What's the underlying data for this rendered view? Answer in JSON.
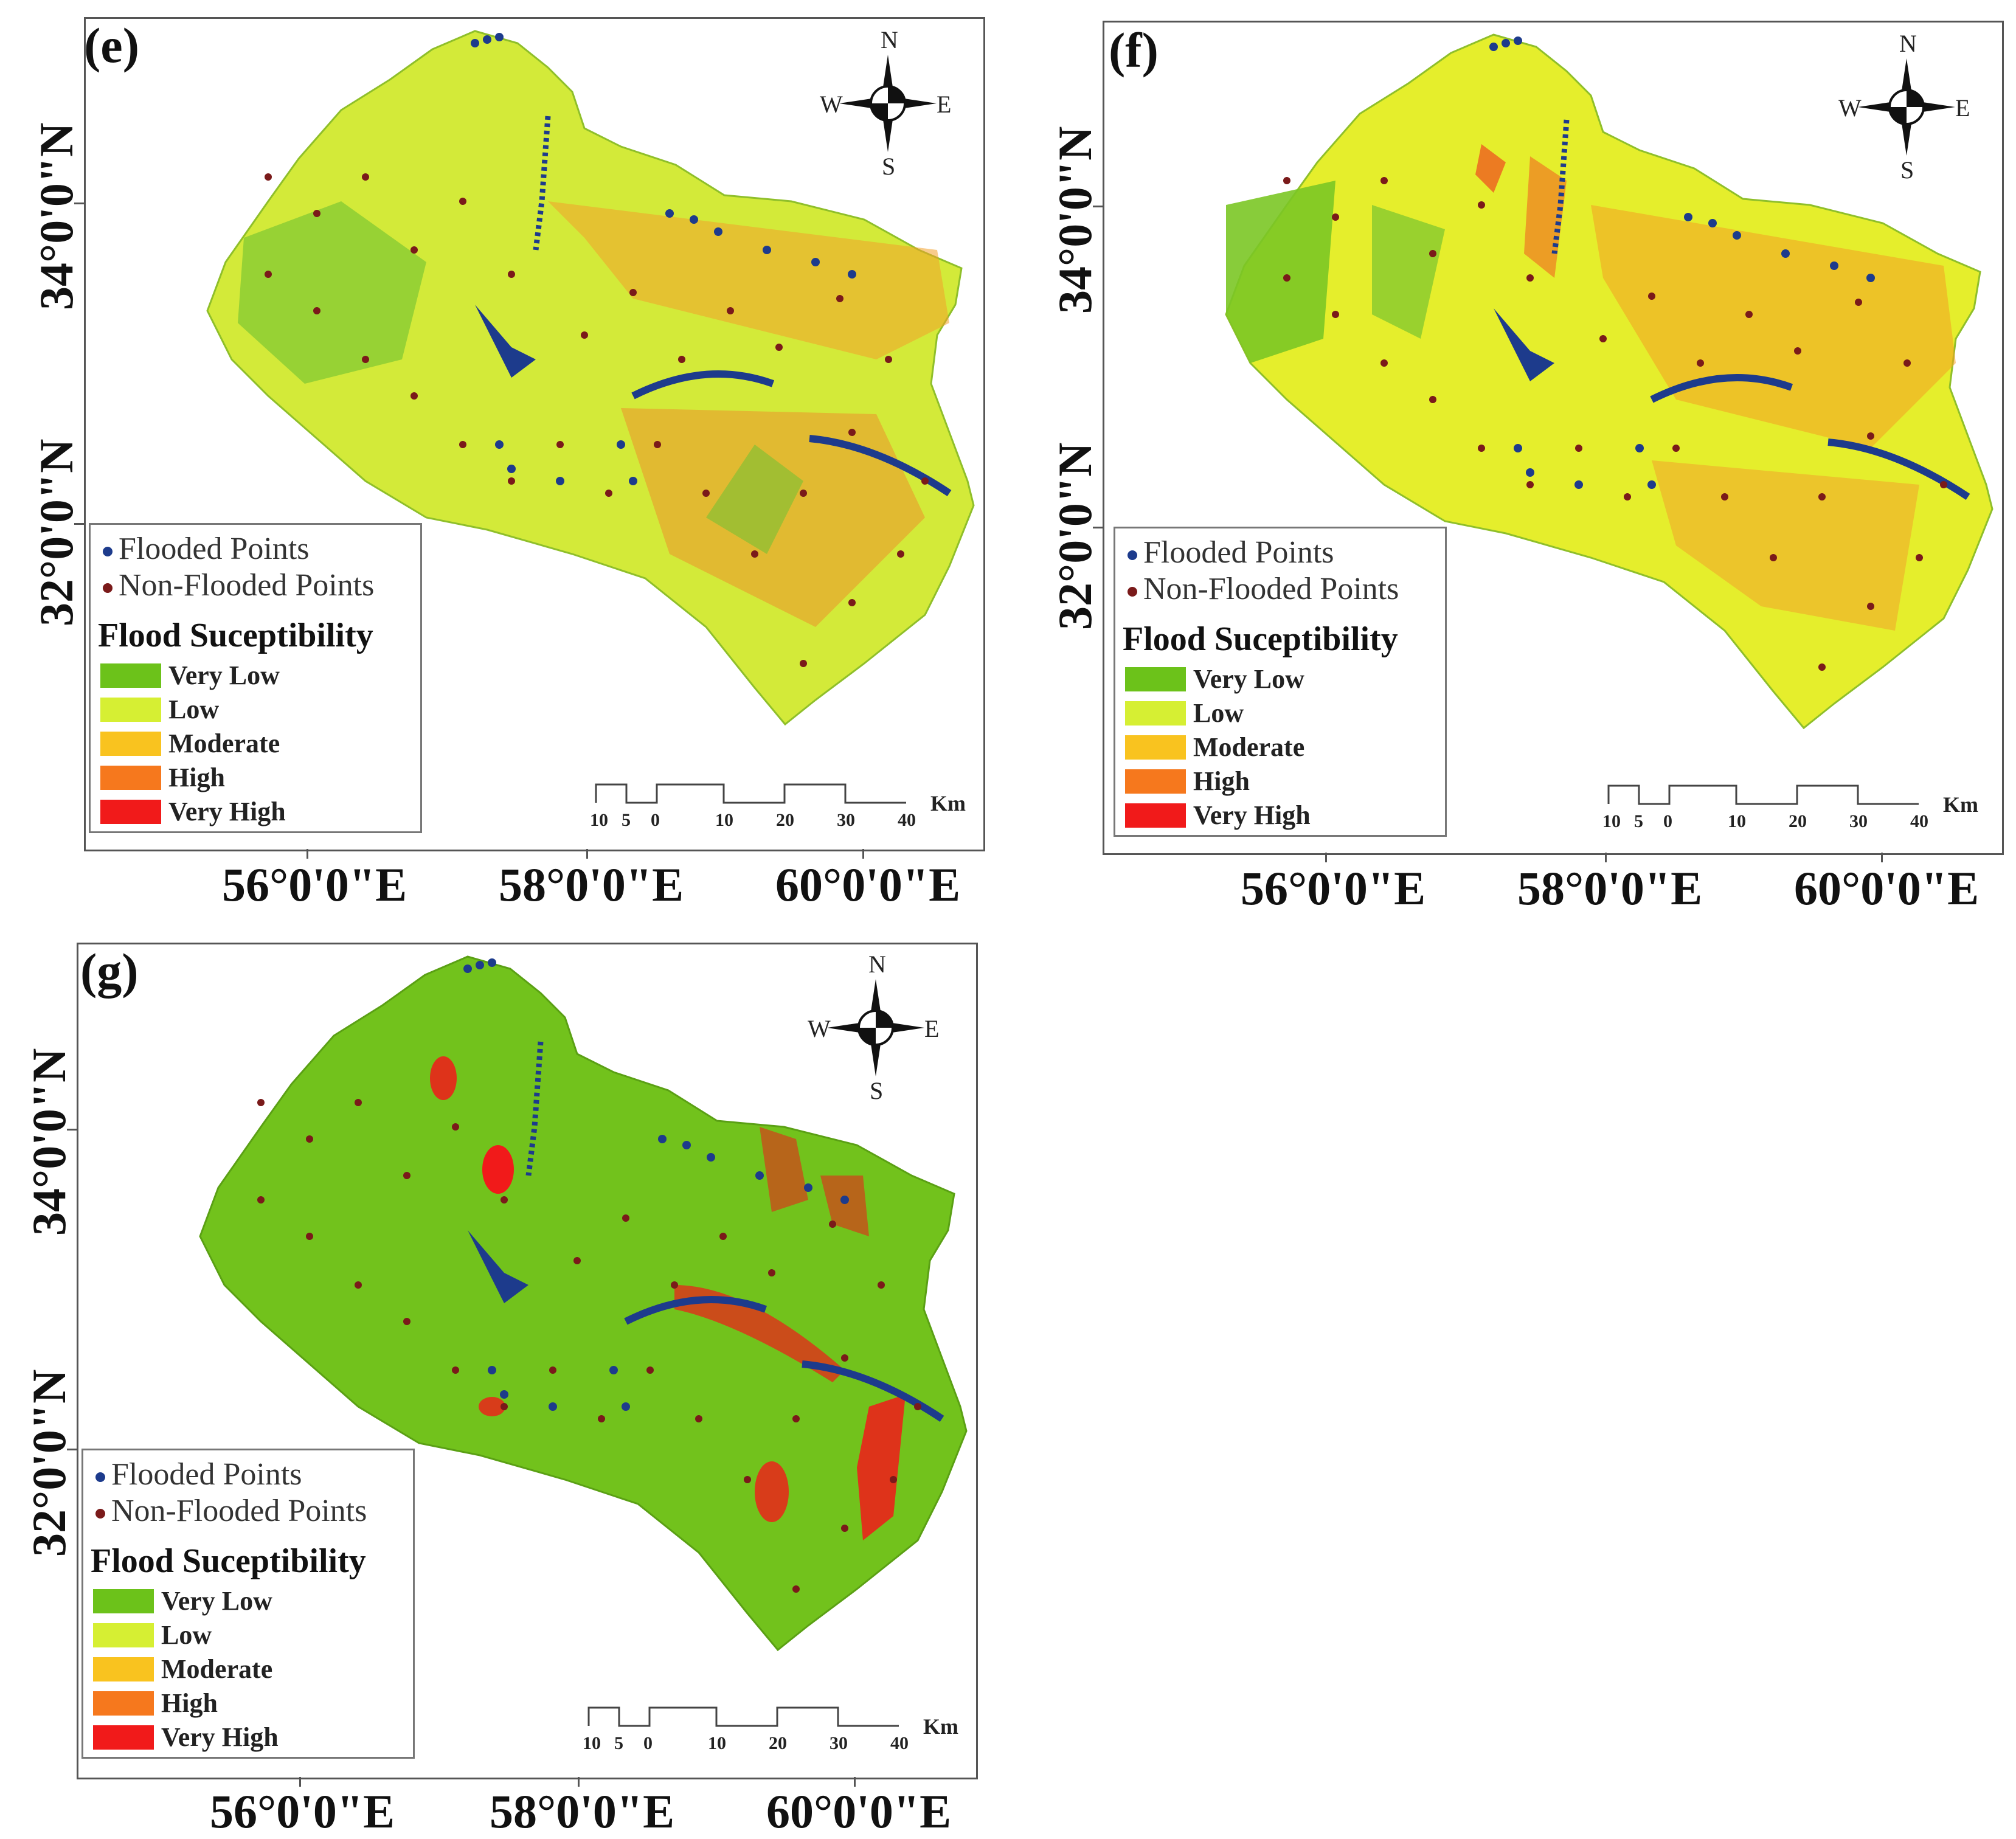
{
  "panels": [
    {
      "id": "e",
      "label": "(e)"
    },
    {
      "id": "f",
      "label": "(f)"
    },
    {
      "id": "g",
      "label": "(g)"
    }
  ],
  "axes": {
    "lat_labels": [
      "34°0'0\"N",
      "32°0'0\"N"
    ],
    "lon_labels": [
      "56°0'0\"E",
      "58°0'0\"E",
      "60°0'0\"E"
    ]
  },
  "legend": {
    "flooded": "Flooded Points",
    "non_flooded": "Non-Flooded Points",
    "title": "Flood Suceptibility",
    "classes": [
      {
        "label": "Very Low",
        "color": "#6cc21a"
      },
      {
        "label": "Low",
        "color": "#d6ef33"
      },
      {
        "label": "Moderate",
        "color": "#f9c31f"
      },
      {
        "label": "High",
        "color": "#f6781d"
      },
      {
        "label": "Very High",
        "color": "#f11a1a"
      }
    ],
    "flooded_color": "#1d3b8c",
    "non_flooded_color": "#7a1a1a"
  },
  "compass": {
    "n": "N",
    "s": "S",
    "e": "E",
    "w": "W"
  },
  "scale": {
    "ticks": [
      "10",
      "5",
      "0",
      "10",
      "20",
      "30",
      "40"
    ],
    "unit": "Km"
  }
}
